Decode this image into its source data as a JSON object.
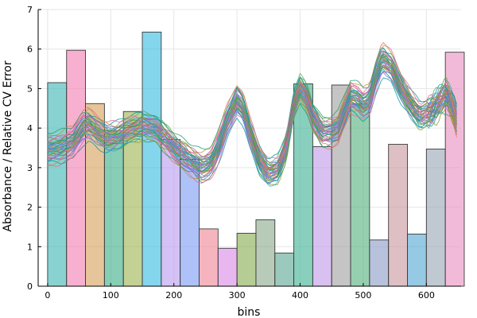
{
  "chart_data": {
    "type": "bar",
    "subtype": "histogram-with-spectra-overlay",
    "title": "",
    "xlabel": "bins",
    "ylabel": "Absorbance / Relative CV Error",
    "xlim": [
      -15,
      655
    ],
    "ylim": [
      0,
      7
    ],
    "xticks": [
      0,
      100,
      200,
      300,
      400,
      500,
      600
    ],
    "yticks": [
      0,
      1,
      2,
      3,
      4,
      5,
      6,
      7
    ],
    "grid": true,
    "legend": "none",
    "bar_width": 30,
    "bars": [
      {
        "x": 0,
        "value": 5.15,
        "color": "#3fb8b4"
      },
      {
        "x": 30,
        "value": 5.97,
        "color": "#f27fb1"
      },
      {
        "x": 60,
        "value": 4.62,
        "color": "#d6a25c"
      },
      {
        "x": 90,
        "value": 3.94,
        "color": "#3fae89"
      },
      {
        "x": 120,
        "value": 4.42,
        "color": "#9fb454"
      },
      {
        "x": 150,
        "value": 6.43,
        "color": "#38bde2"
      },
      {
        "x": 180,
        "value": 3.71,
        "color": "#b99cf0"
      },
      {
        "x": 210,
        "value": 3.21,
        "color": "#7d9df5"
      },
      {
        "x": 240,
        "value": 1.45,
        "color": "#f08896"
      },
      {
        "x": 270,
        "value": 0.96,
        "color": "#dc8ae6"
      },
      {
        "x": 300,
        "value": 1.34,
        "color": "#88ad52"
      },
      {
        "x": 330,
        "value": 1.68,
        "color": "#8aab8c"
      },
      {
        "x": 360,
        "value": 0.84,
        "color": "#5fa894"
      },
      {
        "x": 390,
        "value": 5.12,
        "color": "#3fb394"
      },
      {
        "x": 420,
        "value": 3.53,
        "color": "#c09ae8"
      },
      {
        "x": 450,
        "value": 5.09,
        "color": "#a1a1a1"
      },
      {
        "x": 480,
        "value": 4.61,
        "color": "#55b280"
      },
      {
        "x": 510,
        "value": 1.17,
        "color": "#8e9cc7"
      },
      {
        "x": 540,
        "value": 3.59,
        "color": "#c99aa0"
      },
      {
        "x": 570,
        "value": 1.32,
        "color": "#54a8d3"
      },
      {
        "x": 600,
        "value": 3.47,
        "color": "#9aa6b6"
      },
      {
        "x": 630,
        "value": 5.92,
        "color": "#ea8fc2"
      }
    ],
    "spectra": {
      "count": 40,
      "x_start": 0,
      "x_end": 648,
      "mean_profile": [
        [
          0,
          3.45
        ],
        [
          20,
          3.5
        ],
        [
          40,
          3.65
        ],
        [
          55,
          4.0
        ],
        [
          65,
          4.1
        ],
        [
          80,
          3.9
        ],
        [
          95,
          3.75
        ],
        [
          110,
          3.8
        ],
        [
          130,
          3.95
        ],
        [
          150,
          4.05
        ],
        [
          170,
          4.0
        ],
        [
          190,
          3.7
        ],
        [
          205,
          3.45
        ],
        [
          225,
          3.2
        ],
        [
          245,
          3.0
        ],
        [
          258,
          3.1
        ],
        [
          270,
          3.5
        ],
        [
          285,
          4.2
        ],
        [
          300,
          4.7
        ],
        [
          310,
          4.5
        ],
        [
          320,
          3.9
        ],
        [
          335,
          3.2
        ],
        [
          350,
          2.85
        ],
        [
          365,
          2.95
        ],
        [
          378,
          3.5
        ],
        [
          390,
          4.6
        ],
        [
          400,
          5.0
        ],
        [
          410,
          4.8
        ],
        [
          420,
          4.3
        ],
        [
          435,
          3.9
        ],
        [
          450,
          3.9
        ],
        [
          460,
          4.0
        ],
        [
          470,
          4.4
        ],
        [
          480,
          4.8
        ],
        [
          490,
          4.75
        ],
        [
          500,
          4.6
        ],
        [
          510,
          4.7
        ],
        [
          520,
          5.3
        ],
        [
          530,
          5.75
        ],
        [
          545,
          5.55
        ],
        [
          560,
          5.0
        ],
        [
          575,
          4.6
        ],
        [
          590,
          4.3
        ],
        [
          605,
          4.4
        ],
        [
          618,
          4.6
        ],
        [
          625,
          4.75
        ],
        [
          632,
          4.85
        ],
        [
          640,
          4.6
        ],
        [
          648,
          4.2
        ]
      ],
      "spread_min": -0.55,
      "spread_max": 0.55,
      "colors": [
        "#009c9c",
        "#e26b9a",
        "#c58a3a",
        "#1f9e6f",
        "#8c9c2f",
        "#2aa8d8",
        "#8f72d9",
        "#5b7ee5",
        "#e05a6e",
        "#c06ad0",
        "#5a9c3a",
        "#6aa07a"
      ]
    }
  }
}
